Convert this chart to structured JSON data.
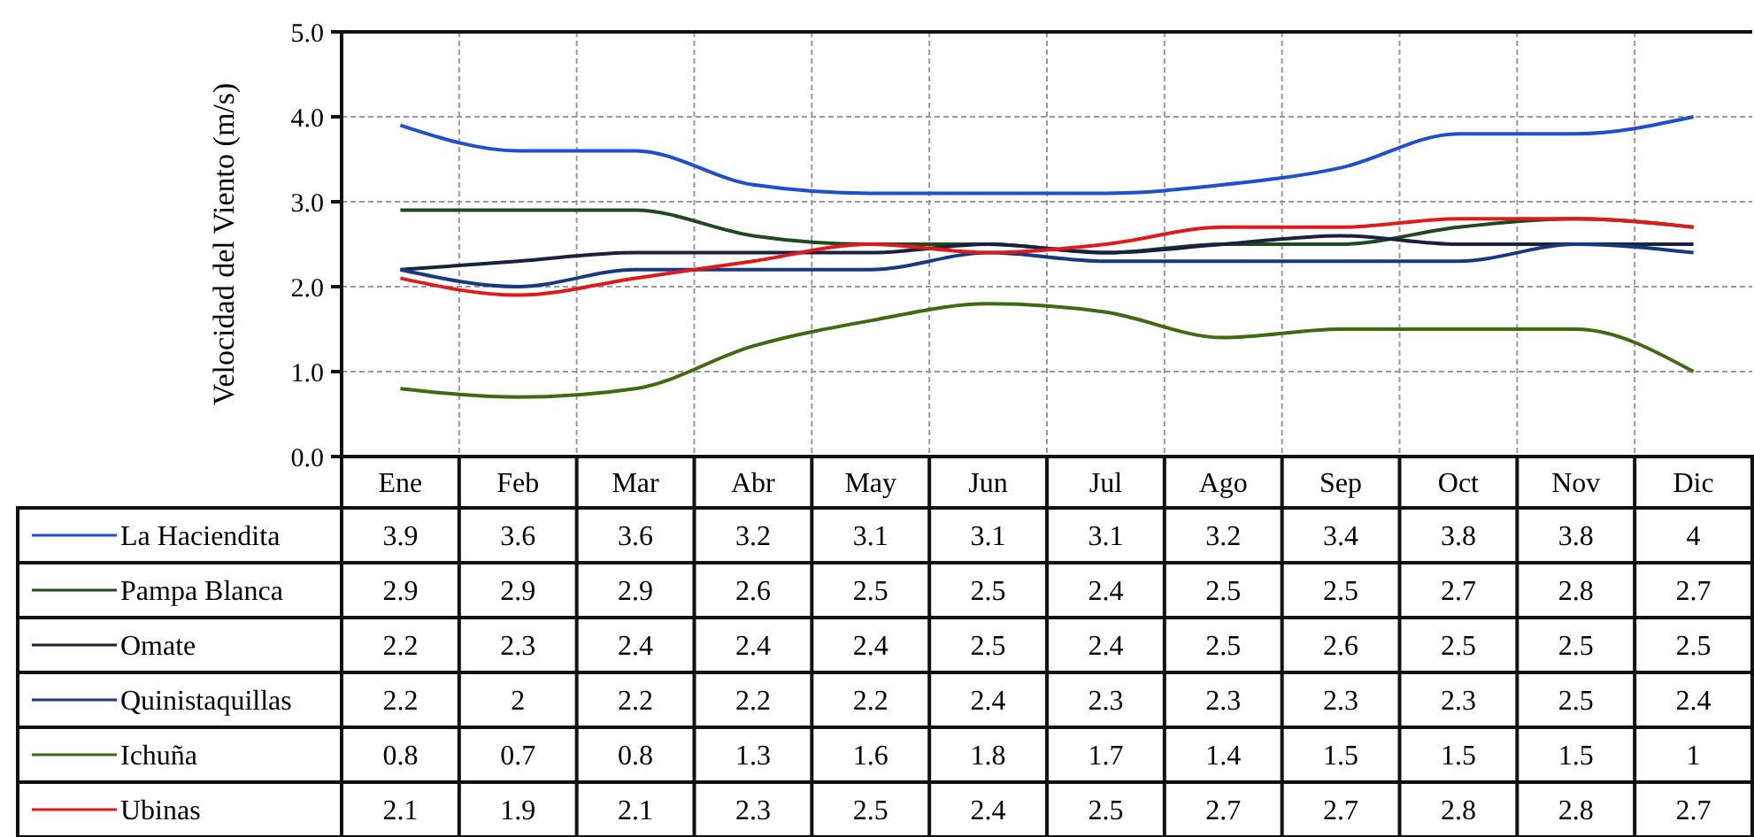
{
  "chart_data": {
    "type": "line",
    "ylabel": "Velocidad del Viento (m/s)",
    "categories": [
      "Ene",
      "Feb",
      "Mar",
      "Abr",
      "May",
      "Jun",
      "Jul",
      "Ago",
      "Sep",
      "Oct",
      "Nov",
      "Dic"
    ],
    "ylim": [
      0,
      5
    ],
    "yticks": [
      {
        "value": 0,
        "label": "0.0"
      },
      {
        "value": 1,
        "label": "1.0"
      },
      {
        "value": 2,
        "label": "2.0"
      },
      {
        "value": 3,
        "label": "3.0"
      },
      {
        "value": 4,
        "label": "4.0"
      },
      {
        "value": 5,
        "label": "5.0"
      }
    ],
    "grid": true,
    "legend": "bottom left",
    "data_labels": true,
    "marker": "none",
    "line_style": "solid",
    "series": [
      {
        "name": "La Haciendita",
        "color": "#1f4fd0",
        "values": [
          3.9,
          3.6,
          3.6,
          3.2,
          3.1,
          3.1,
          3.1,
          3.2,
          3.4,
          3.8,
          3.8,
          4
        ]
      },
      {
        "name": "Pampa Blanca",
        "color": "#1e4a1e",
        "values": [
          2.9,
          2.9,
          2.9,
          2.6,
          2.5,
          2.5,
          2.4,
          2.5,
          2.5,
          2.7,
          2.8,
          2.7
        ]
      },
      {
        "name": "Omate",
        "color": "#1a2040",
        "values": [
          2.2,
          2.3,
          2.4,
          2.4,
          2.4,
          2.5,
          2.4,
          2.5,
          2.6,
          2.5,
          2.5,
          2.5
        ]
      },
      {
        "name": "Quinistaquillas",
        "color": "#153a80",
        "values": [
          2.2,
          2,
          2.2,
          2.2,
          2.2,
          2.4,
          2.3,
          2.3,
          2.3,
          2.3,
          2.5,
          2.4
        ]
      },
      {
        "name": "Ichuña",
        "color": "#3f6a10",
        "values": [
          0.8,
          0.7,
          0.8,
          1.3,
          1.6,
          1.8,
          1.7,
          1.4,
          1.5,
          1.5,
          1.5,
          1
        ]
      },
      {
        "name": "Ubinas",
        "color": "#e01a1a",
        "values": [
          2.1,
          1.9,
          2.1,
          2.3,
          2.5,
          2.4,
          2.5,
          2.7,
          2.7,
          2.8,
          2.8,
          2.7
        ]
      }
    ]
  }
}
